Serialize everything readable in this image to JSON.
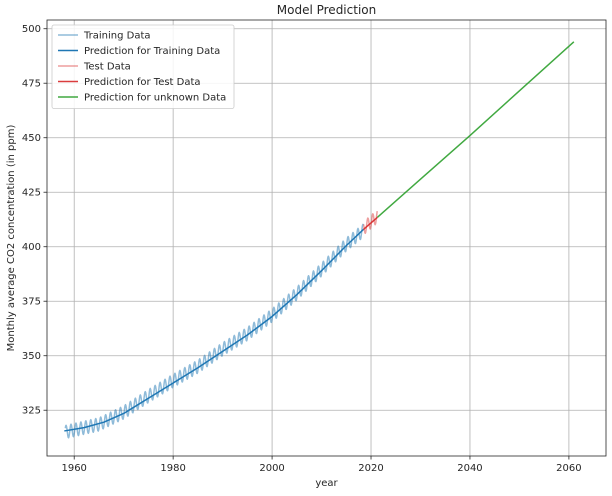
{
  "chart_data": {
    "type": "line",
    "title": "Model Prediction",
    "xlabel": "year",
    "ylabel": "Monthly average CO2 concentration (in ppm)",
    "xlim": [
      1954.5,
      2067.5
    ],
    "ylim": [
      304,
      504
    ],
    "xticks": [
      1960,
      1980,
      2000,
      2020,
      2040,
      2060
    ],
    "yticks": [
      325,
      350,
      375,
      400,
      425,
      450,
      475,
      500
    ],
    "grid": true,
    "legend_position": "top-left",
    "seasonal_amplitude": 3,
    "series": [
      {
        "name": "Training Data",
        "color": "#1f77b4",
        "opacity": 0.5,
        "style": "seasonal",
        "trend": [
          [
            1958.2,
            315.0
          ],
          [
            1965,
            318.5
          ],
          [
            1970,
            324.0
          ],
          [
            1975,
            331.5
          ],
          [
            1980,
            338.5
          ],
          [
            1985,
            345.0
          ],
          [
            1990,
            353.0
          ],
          [
            1995,
            360.0
          ],
          [
            2000,
            368.5
          ],
          [
            2005,
            378.5
          ],
          [
            2010,
            389.5
          ],
          [
            2015,
            401.0
          ],
          [
            2018.5,
            407.5
          ]
        ]
      },
      {
        "name": "Prediction for Training Data",
        "color": "#1f77b4",
        "opacity": 1,
        "style": "line",
        "points": [
          [
            1958,
            315.5
          ],
          [
            1962,
            317.0
          ],
          [
            1966,
            319.5
          ],
          [
            1970,
            323.5
          ],
          [
            1975,
            330.5
          ],
          [
            1980,
            337.5
          ],
          [
            1985,
            344.5
          ],
          [
            1990,
            352.0
          ],
          [
            1995,
            359.5
          ],
          [
            2000,
            368.0
          ],
          [
            2005,
            378.0
          ],
          [
            2010,
            389.0
          ],
          [
            2015,
            400.5
          ],
          [
            2018.5,
            408.0
          ]
        ]
      },
      {
        "name": "Test Data",
        "color": "#d62728",
        "opacity": 0.45,
        "style": "seasonal",
        "trend": [
          [
            2018.5,
            408.5
          ],
          [
            2021.3,
            414.0
          ]
        ]
      },
      {
        "name": "Prediction for Test Data",
        "color": "#d62728",
        "opacity": 0.9,
        "style": "line",
        "points": [
          [
            2018.5,
            408.0
          ],
          [
            2021.3,
            413.5
          ]
        ]
      },
      {
        "name": "Prediction for unknown Data",
        "color": "#2ca02c",
        "opacity": 0.9,
        "style": "line",
        "points": [
          [
            2021.3,
            413.5
          ],
          [
            2030,
            431.0
          ],
          [
            2040,
            451.0
          ],
          [
            2050,
            471.5
          ],
          [
            2061,
            494.0
          ]
        ]
      }
    ]
  }
}
